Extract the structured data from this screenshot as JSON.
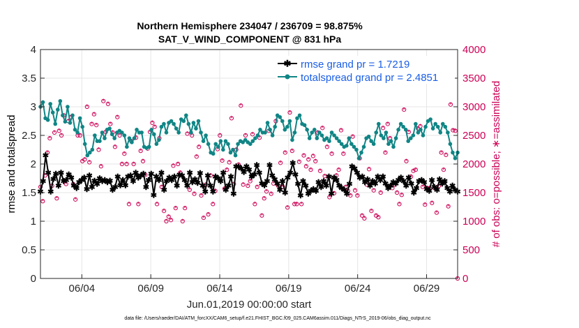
{
  "chart_data": {
    "type": "line",
    "title_line1": "Northern Hemisphere 234047 / 236709 = 98.875%",
    "title_line2": "SAT_V_WIND_COMPONENT @ 831 hPa",
    "xlabel": "Jun.01,2019 00:00:00 start",
    "ylabel_left": "rmse and totalspread",
    "ylabel_right": "# of obs: o=possible; ∗=assimilated",
    "footnote": "data file: /Users/raeder/DAI/ATM_forcXX/CAM6_setup/f.e21.FHIST_BGC.f09_025.CAM6assim.011/Diags_NTrS_2019-06/obs_diag_output.nc",
    "x_range_days": [
      1.0,
      31.25
    ],
    "x_ticks": [
      {
        "day": 4,
        "label": "06/04"
      },
      {
        "day": 9,
        "label": "06/09"
      },
      {
        "day": 14,
        "label": "06/14"
      },
      {
        "day": 19,
        "label": "06/19"
      },
      {
        "day": 24,
        "label": "06/24"
      },
      {
        "day": 29,
        "label": "06/29"
      }
    ],
    "ylim_left": [
      0,
      4
    ],
    "yticks_left": [
      "0",
      "0.5",
      "1",
      "1.5",
      "2",
      "2.5",
      "3",
      "3.5",
      "4"
    ],
    "ylim_right": [
      0,
      4000
    ],
    "yticks_right": [
      "0",
      "500",
      "1000",
      "1500",
      "2000",
      "2500",
      "3000",
      "3500",
      "4000"
    ],
    "colors": {
      "rmse": "#000000",
      "spread": "#108585",
      "obs": "#cc0055",
      "legend_text": "#1a5ee6",
      "grid": "#e6e6e6"
    },
    "series": [
      {
        "name": "rmse",
        "legend": "rmse grand pr = 1.7219",
        "values": [
          1.52,
          1.7,
          2.15,
          1.85,
          1.52,
          1.74,
          1.83,
          1.62,
          1.85,
          1.7,
          1.72,
          1.82,
          1.76,
          1.62,
          1.58,
          1.68,
          1.72,
          1.76,
          1.56,
          1.8,
          1.6,
          1.71,
          1.65,
          1.75,
          1.7,
          1.72,
          1.68,
          1.71,
          1.55,
          1.6,
          1.78,
          1.63,
          1.72,
          1.63,
          1.78,
          1.8,
          1.7,
          1.85,
          1.76,
          1.8,
          1.83,
          1.6,
          1.72,
          1.83,
          1.46,
          1.78,
          1.72,
          1.85,
          1.55,
          1.7,
          1.76,
          1.72,
          1.78,
          1.62,
          1.81,
          1.8,
          1.72,
          1.62,
          1.85,
          1.68,
          1.73,
          1.67,
          1.84,
          1.62,
          1.52,
          1.8,
          1.62,
          1.52,
          1.78,
          1.75,
          1.7,
          1.85,
          1.55,
          1.62,
          1.78,
          1.48,
          1.96,
          1.95,
          1.92,
          1.86,
          1.96,
          1.9,
          1.78,
          1.82,
          1.98,
          1.85,
          1.66,
          1.63,
          1.7,
          1.98,
          1.8,
          1.73,
          1.66,
          1.55,
          1.7,
          1.5,
          1.76,
          1.85,
          2.02,
          1.82,
          1.65,
          1.45,
          1.7,
          1.62,
          1.48,
          1.53,
          1.56,
          1.53,
          1.68,
          1.6,
          1.7,
          1.62,
          1.78,
          1.48,
          1.76,
          1.72,
          1.62,
          1.58,
          1.55,
          1.48,
          1.65,
          1.96,
          1.92,
          1.85,
          1.76,
          1.78,
          1.68,
          1.73,
          1.62,
          1.7,
          1.66,
          1.78,
          1.72,
          1.78,
          1.66,
          1.58,
          1.62,
          1.68,
          1.66,
          1.72,
          1.76,
          1.7,
          1.62,
          1.76,
          1.66,
          1.5,
          1.58,
          1.7,
          1.72,
          1.68,
          1.56,
          1.53,
          1.72,
          1.6,
          1.55,
          1.73,
          1.66,
          1.7,
          1.58,
          1.52,
          1.62,
          1.55,
          1.52
        ]
      },
      {
        "name": "totalspread",
        "legend": "totalspread grand pr = 2.4851",
        "values": [
          3.0,
          3.08,
          2.8,
          2.77,
          3.05,
          2.9,
          2.7,
          2.95,
          3.1,
          2.85,
          2.74,
          3.0,
          2.72,
          2.85,
          2.6,
          2.55,
          2.8,
          2.65,
          2.35,
          2.15,
          2.2,
          2.25,
          2.5,
          2.4,
          2.4,
          2.55,
          2.45,
          2.6,
          2.62,
          2.52,
          2.45,
          2.55,
          2.58,
          2.55,
          2.5,
          2.3,
          2.45,
          2.38,
          2.45,
          2.6,
          2.55,
          2.55,
          2.3,
          2.28,
          2.3,
          2.6,
          2.52,
          2.35,
          2.42,
          2.65,
          2.7,
          2.55,
          2.72,
          2.75,
          2.7,
          2.62,
          2.55,
          2.78,
          2.75,
          2.85,
          2.7,
          2.55,
          2.72,
          2.62,
          2.75,
          2.55,
          2.4,
          2.5,
          2.35,
          2.2,
          2.18,
          2.35,
          2.3,
          2.4,
          2.25,
          2.4,
          2.35,
          2.2,
          2.25,
          2.15,
          2.35,
          2.4,
          2.38,
          2.42,
          2.38,
          2.35,
          2.4,
          2.45,
          2.5,
          2.6,
          2.55,
          2.55,
          2.72,
          2.6,
          2.5,
          2.65,
          2.85,
          2.82,
          2.75,
          2.6,
          2.65,
          2.75,
          2.42,
          2.55,
          2.8,
          2.85,
          2.7,
          2.68,
          2.6,
          2.45,
          2.55,
          2.6,
          2.45,
          2.55,
          2.5,
          2.42,
          2.45,
          2.4,
          2.55,
          2.5,
          2.45,
          2.4,
          2.35,
          2.3,
          2.32,
          2.45,
          2.35,
          2.3,
          2.25,
          2.1,
          2.2,
          2.3,
          2.45,
          2.48,
          2.4,
          2.35,
          2.55,
          2.7,
          2.5,
          2.45,
          2.55,
          2.35,
          2.4,
          2.3,
          2.45,
          2.6,
          2.7,
          2.65,
          2.6,
          2.4,
          2.45,
          2.5,
          2.7,
          2.55,
          2.6,
          2.5,
          2.65,
          2.75,
          2.78,
          2.62,
          2.7,
          2.65,
          2.55,
          2.7,
          2.65,
          2.55,
          2.35,
          2.2,
          2.1,
          2.2
        ]
      },
      {
        "name": "obs_possible",
        "values": [
          1600,
          1350,
          1800,
          2200,
          2450,
          1620,
          2550,
          1400,
          2580,
          2500,
          2850,
          1650,
          2750,
          2820,
          1650,
          1380,
          2500,
          2500,
          2050,
          2080,
          3000,
          2030,
          2700,
          2870,
          2680,
          2250,
          1960,
          3100,
          2560,
          3050,
          2700,
          2550,
          2300,
          2820,
          2500,
          2000,
          2180,
          2000,
          1300,
          2400,
          2000,
          2460,
          1300,
          2230,
          2050,
          1810,
          2270,
          2560,
          2720,
          2650,
          1300,
          2450,
          1600,
          1180,
          1000,
          1080,
          1020,
          1970,
          1230,
          2000,
          1850,
          1000,
          1230,
          2530,
          1550,
          2500,
          1480,
          2130,
          2300,
          1450,
          1060,
          1640,
          1120,
          1800,
          1300,
          1530,
          2260,
          2500,
          2060,
          1570,
          1900,
          2030,
          2800,
          1650,
          2250,
          1990,
          3020,
          1640,
          2500,
          1620,
          1700,
          2520,
          1300,
          1600,
          2460,
          1100,
          1400,
          1520,
          2580,
          1480,
          1660,
          2750,
          1620,
          2020,
          1600,
          2200,
          1240,
          2900,
          2230,
          1300,
          1300,
          2040,
          1300,
          2150,
          1960,
          2080,
          1900,
          2140,
          2050,
          2550,
          1880,
          2630,
          1790,
          2300,
          1420,
          2180,
          1490,
          1800,
          1900,
          2590,
          2180,
          1600,
          1530,
          1450,
          2480,
          1540,
          1450,
          2100,
          1100,
          1050,
          1640,
          1910,
          1180,
          1540,
          1100,
          1070,
          1500,
          2630,
          2200,
          2700,
          2450,
          1580,
          1640,
          1500,
          1300,
          1460,
          2950,
          2050,
          2560,
          1780,
          1880,
          1900,
          2620,
          2660,
          1600,
          1290,
          1580,
          1580,
          1320,
          1580,
          1150,
          1620,
          2200,
          1900,
          2160,
          1260,
          3040,
          2590,
          2580,
          0
        ]
      }
    ]
  }
}
